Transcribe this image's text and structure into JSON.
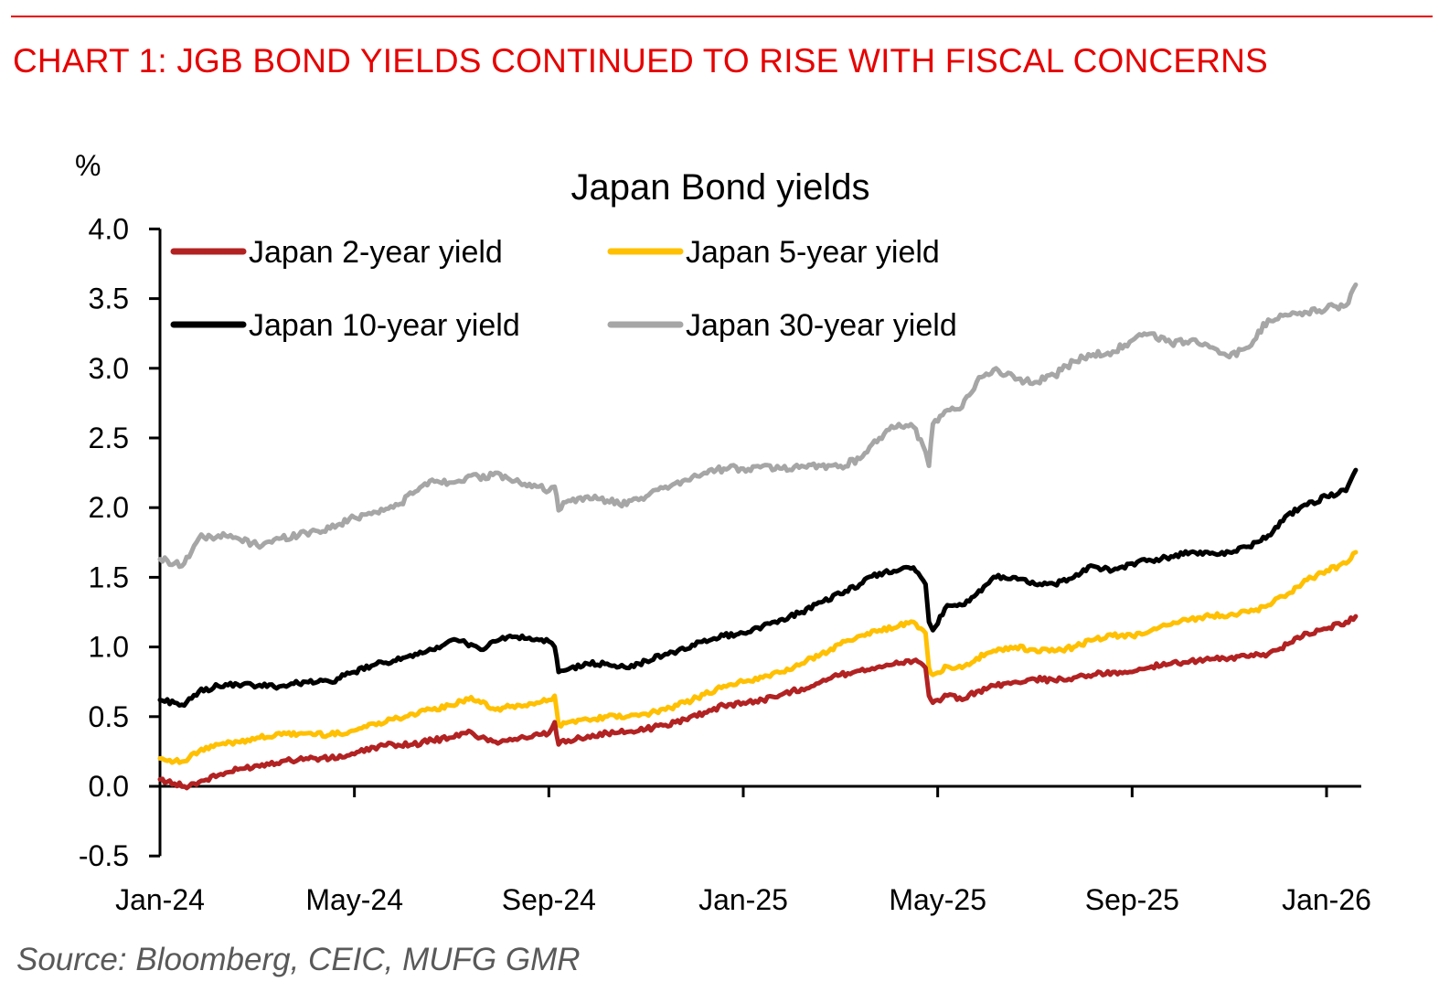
{
  "header": {
    "title": "CHART 1: JGB BOND YIELDS CONTINUED TO RISE WITH FISCAL CONCERNS",
    "accent_color": "#e60000"
  },
  "source": "Source: Bloomberg, CEIC, MUFG GMR",
  "chart_data": {
    "type": "line",
    "title": "Japan Bond yields",
    "ylabel": "%",
    "xlabel": "",
    "ylim": [
      -0.5,
      4.0
    ],
    "yticks": [
      "4.0",
      "3.5",
      "3.0",
      "2.5",
      "2.0",
      "1.5",
      "1.0",
      "0.5",
      "0.0",
      "-0.5"
    ],
    "ytick_values": [
      4.0,
      3.5,
      3.0,
      2.5,
      2.0,
      1.5,
      1.0,
      0.5,
      0.0,
      -0.5
    ],
    "xlim": [
      0,
      24.6
    ],
    "xticks": [
      "Jan-24",
      "May-24",
      "Sep-24",
      "Jan-25",
      "May-25",
      "Sep-25",
      "Jan-26"
    ],
    "xtick_values": [
      0,
      4,
      8,
      12,
      16,
      20,
      24
    ],
    "x_unit": "months since Jan-2024",
    "grid": false,
    "legend_position": "top-left",
    "series": [
      {
        "name": "Japan 2-year yield",
        "color": "#b22222",
        "points": [
          [
            0,
            0.05
          ],
          [
            0.3,
            0.02
          ],
          [
            0.5,
            0.0
          ],
          [
            0.8,
            0.03
          ],
          [
            1.2,
            0.08
          ],
          [
            1.6,
            0.12
          ],
          [
            2.0,
            0.15
          ],
          [
            2.5,
            0.18
          ],
          [
            3.0,
            0.2
          ],
          [
            3.5,
            0.2
          ],
          [
            4.0,
            0.23
          ],
          [
            4.4,
            0.28
          ],
          [
            4.8,
            0.3
          ],
          [
            5.2,
            0.3
          ],
          [
            5.6,
            0.33
          ],
          [
            6.0,
            0.35
          ],
          [
            6.4,
            0.39
          ],
          [
            6.6,
            0.35
          ],
          [
            6.9,
            0.32
          ],
          [
            7.2,
            0.34
          ],
          [
            7.5,
            0.35
          ],
          [
            7.8,
            0.37
          ],
          [
            8.0,
            0.38
          ],
          [
            8.12,
            0.46
          ],
          [
            8.2,
            0.3
          ],
          [
            8.4,
            0.33
          ],
          [
            8.8,
            0.36
          ],
          [
            9.2,
            0.38
          ],
          [
            9.6,
            0.39
          ],
          [
            10.0,
            0.41
          ],
          [
            10.4,
            0.44
          ],
          [
            10.8,
            0.48
          ],
          [
            11.2,
            0.53
          ],
          [
            11.6,
            0.58
          ],
          [
            12.0,
            0.6
          ],
          [
            12.4,
            0.62
          ],
          [
            12.8,
            0.66
          ],
          [
            13.2,
            0.7
          ],
          [
            13.6,
            0.75
          ],
          [
            14.0,
            0.8
          ],
          [
            14.4,
            0.83
          ],
          [
            14.8,
            0.86
          ],
          [
            15.2,
            0.88
          ],
          [
            15.5,
            0.9
          ],
          [
            15.75,
            0.85
          ],
          [
            15.82,
            0.65
          ],
          [
            15.9,
            0.6
          ],
          [
            16.2,
            0.65
          ],
          [
            16.5,
            0.62
          ],
          [
            16.8,
            0.68
          ],
          [
            17.2,
            0.72
          ],
          [
            17.6,
            0.75
          ],
          [
            18.0,
            0.77
          ],
          [
            18.4,
            0.76
          ],
          [
            18.8,
            0.78
          ],
          [
            19.2,
            0.8
          ],
          [
            19.6,
            0.82
          ],
          [
            20.0,
            0.82
          ],
          [
            20.4,
            0.86
          ],
          [
            20.8,
            0.88
          ],
          [
            21.2,
            0.9
          ],
          [
            21.6,
            0.91
          ],
          [
            22.0,
            0.92
          ],
          [
            22.4,
            0.93
          ],
          [
            22.8,
            0.95
          ],
          [
            23.2,
            1.02
          ],
          [
            23.6,
            1.1
          ],
          [
            24.0,
            1.13
          ],
          [
            24.4,
            1.18
          ],
          [
            24.6,
            1.22
          ]
        ]
      },
      {
        "name": "Japan 5-year yield",
        "color": "#ffc000",
        "points": [
          [
            0,
            0.2
          ],
          [
            0.3,
            0.18
          ],
          [
            0.5,
            0.18
          ],
          [
            0.8,
            0.25
          ],
          [
            1.2,
            0.3
          ],
          [
            1.6,
            0.32
          ],
          [
            2.0,
            0.35
          ],
          [
            2.5,
            0.37
          ],
          [
            3.0,
            0.38
          ],
          [
            3.5,
            0.37
          ],
          [
            4.0,
            0.4
          ],
          [
            4.4,
            0.45
          ],
          [
            4.8,
            0.48
          ],
          [
            5.2,
            0.52
          ],
          [
            5.6,
            0.55
          ],
          [
            6.0,
            0.58
          ],
          [
            6.4,
            0.64
          ],
          [
            6.6,
            0.6
          ],
          [
            6.9,
            0.55
          ],
          [
            7.2,
            0.57
          ],
          [
            7.5,
            0.58
          ],
          [
            7.8,
            0.6
          ],
          [
            8.0,
            0.62
          ],
          [
            8.12,
            0.65
          ],
          [
            8.2,
            0.44
          ],
          [
            8.4,
            0.46
          ],
          [
            8.8,
            0.48
          ],
          [
            9.2,
            0.5
          ],
          [
            9.6,
            0.5
          ],
          [
            10.0,
            0.52
          ],
          [
            10.4,
            0.55
          ],
          [
            10.8,
            0.6
          ],
          [
            11.2,
            0.66
          ],
          [
            11.6,
            0.72
          ],
          [
            12.0,
            0.75
          ],
          [
            12.4,
            0.78
          ],
          [
            12.8,
            0.82
          ],
          [
            13.2,
            0.88
          ],
          [
            13.6,
            0.95
          ],
          [
            14.0,
            1.02
          ],
          [
            14.4,
            1.08
          ],
          [
            14.8,
            1.12
          ],
          [
            15.2,
            1.15
          ],
          [
            15.5,
            1.18
          ],
          [
            15.75,
            1.1
          ],
          [
            15.82,
            0.85
          ],
          [
            15.9,
            0.8
          ],
          [
            16.2,
            0.86
          ],
          [
            16.5,
            0.85
          ],
          [
            16.8,
            0.92
          ],
          [
            17.2,
            0.97
          ],
          [
            17.6,
            1.0
          ],
          [
            18.0,
            0.98
          ],
          [
            18.4,
            0.97
          ],
          [
            18.8,
            1.0
          ],
          [
            19.2,
            1.05
          ],
          [
            19.6,
            1.08
          ],
          [
            20.0,
            1.08
          ],
          [
            20.4,
            1.12
          ],
          [
            20.8,
            1.16
          ],
          [
            21.2,
            1.2
          ],
          [
            21.6,
            1.22
          ],
          [
            22.0,
            1.23
          ],
          [
            22.4,
            1.25
          ],
          [
            22.8,
            1.3
          ],
          [
            23.2,
            1.38
          ],
          [
            23.6,
            1.48
          ],
          [
            24.0,
            1.55
          ],
          [
            24.4,
            1.6
          ],
          [
            24.6,
            1.68
          ]
        ]
      },
      {
        "name": "Japan 10-year yield",
        "color": "#000000",
        "points": [
          [
            0,
            0.62
          ],
          [
            0.3,
            0.6
          ],
          [
            0.5,
            0.58
          ],
          [
            0.8,
            0.68
          ],
          [
            1.2,
            0.72
          ],
          [
            1.6,
            0.73
          ],
          [
            2.0,
            0.72
          ],
          [
            2.5,
            0.72
          ],
          [
            3.0,
            0.75
          ],
          [
            3.5,
            0.75
          ],
          [
            4.0,
            0.82
          ],
          [
            4.4,
            0.87
          ],
          [
            4.8,
            0.9
          ],
          [
            5.2,
            0.93
          ],
          [
            5.6,
            0.98
          ],
          [
            6.0,
            1.05
          ],
          [
            6.4,
            1.02
          ],
          [
            6.6,
            0.98
          ],
          [
            6.9,
            1.04
          ],
          [
            7.2,
            1.08
          ],
          [
            7.5,
            1.06
          ],
          [
            7.8,
            1.05
          ],
          [
            8.0,
            1.04
          ],
          [
            8.12,
            1.0
          ],
          [
            8.2,
            0.82
          ],
          [
            8.4,
            0.84
          ],
          [
            8.8,
            0.88
          ],
          [
            9.2,
            0.88
          ],
          [
            9.6,
            0.85
          ],
          [
            10.0,
            0.9
          ],
          [
            10.4,
            0.95
          ],
          [
            10.8,
            0.98
          ],
          [
            11.2,
            1.05
          ],
          [
            11.6,
            1.08
          ],
          [
            12.0,
            1.1
          ],
          [
            12.4,
            1.15
          ],
          [
            12.8,
            1.2
          ],
          [
            13.2,
            1.25
          ],
          [
            13.6,
            1.32
          ],
          [
            14.0,
            1.38
          ],
          [
            14.4,
            1.45
          ],
          [
            14.8,
            1.53
          ],
          [
            15.2,
            1.55
          ],
          [
            15.5,
            1.57
          ],
          [
            15.75,
            1.45
          ],
          [
            15.82,
            1.18
          ],
          [
            15.9,
            1.12
          ],
          [
            16.2,
            1.3
          ],
          [
            16.5,
            1.3
          ],
          [
            16.8,
            1.38
          ],
          [
            17.2,
            1.5
          ],
          [
            17.6,
            1.5
          ],
          [
            18.0,
            1.45
          ],
          [
            18.4,
            1.45
          ],
          [
            18.8,
            1.5
          ],
          [
            19.2,
            1.58
          ],
          [
            19.6,
            1.55
          ],
          [
            20.0,
            1.6
          ],
          [
            20.4,
            1.62
          ],
          [
            20.8,
            1.65
          ],
          [
            21.2,
            1.68
          ],
          [
            21.6,
            1.67
          ],
          [
            22.0,
            1.68
          ],
          [
            22.4,
            1.72
          ],
          [
            22.8,
            1.8
          ],
          [
            23.2,
            1.95
          ],
          [
            23.6,
            2.02
          ],
          [
            24.0,
            2.08
          ],
          [
            24.4,
            2.12
          ],
          [
            24.6,
            2.27
          ]
        ]
      },
      {
        "name": "Japan 30-year yield",
        "color": "#a6a6a6",
        "points": [
          [
            0,
            1.63
          ],
          [
            0.3,
            1.6
          ],
          [
            0.5,
            1.6
          ],
          [
            0.8,
            1.78
          ],
          [
            1.2,
            1.8
          ],
          [
            1.6,
            1.78
          ],
          [
            2.0,
            1.73
          ],
          [
            2.5,
            1.78
          ],
          [
            3.0,
            1.82
          ],
          [
            3.5,
            1.85
          ],
          [
            4.0,
            1.93
          ],
          [
            4.4,
            1.97
          ],
          [
            4.8,
            2.0
          ],
          [
            5.2,
            2.1
          ],
          [
            5.6,
            2.2
          ],
          [
            6.0,
            2.18
          ],
          [
            6.4,
            2.23
          ],
          [
            6.6,
            2.2
          ],
          [
            6.9,
            2.25
          ],
          [
            7.2,
            2.2
          ],
          [
            7.5,
            2.17
          ],
          [
            7.8,
            2.15
          ],
          [
            8.0,
            2.12
          ],
          [
            8.12,
            2.15
          ],
          [
            8.2,
            1.98
          ],
          [
            8.4,
            2.05
          ],
          [
            8.8,
            2.08
          ],
          [
            9.2,
            2.05
          ],
          [
            9.6,
            2.02
          ],
          [
            10.0,
            2.08
          ],
          [
            10.4,
            2.15
          ],
          [
            10.8,
            2.2
          ],
          [
            11.2,
            2.25
          ],
          [
            11.6,
            2.28
          ],
          [
            12.0,
            2.28
          ],
          [
            12.4,
            2.3
          ],
          [
            12.8,
            2.28
          ],
          [
            13.2,
            2.3
          ],
          [
            13.6,
            2.3
          ],
          [
            14.0,
            2.3
          ],
          [
            14.4,
            2.35
          ],
          [
            14.8,
            2.5
          ],
          [
            15.2,
            2.6
          ],
          [
            15.5,
            2.58
          ],
          [
            15.75,
            2.4
          ],
          [
            15.82,
            2.3
          ],
          [
            15.9,
            2.6
          ],
          [
            16.2,
            2.7
          ],
          [
            16.5,
            2.72
          ],
          [
            16.8,
            2.9
          ],
          [
            17.2,
            3.0
          ],
          [
            17.6,
            2.92
          ],
          [
            18.0,
            2.9
          ],
          [
            18.4,
            2.95
          ],
          [
            18.8,
            3.05
          ],
          [
            19.2,
            3.1
          ],
          [
            19.6,
            3.12
          ],
          [
            20.0,
            3.2
          ],
          [
            20.4,
            3.25
          ],
          [
            20.8,
            3.18
          ],
          [
            21.2,
            3.2
          ],
          [
            21.6,
            3.15
          ],
          [
            22.0,
            3.08
          ],
          [
            22.4,
            3.15
          ],
          [
            22.8,
            3.35
          ],
          [
            23.2,
            3.38
          ],
          [
            23.6,
            3.4
          ],
          [
            24.0,
            3.43
          ],
          [
            24.4,
            3.45
          ],
          [
            24.6,
            3.6
          ]
        ]
      }
    ]
  }
}
